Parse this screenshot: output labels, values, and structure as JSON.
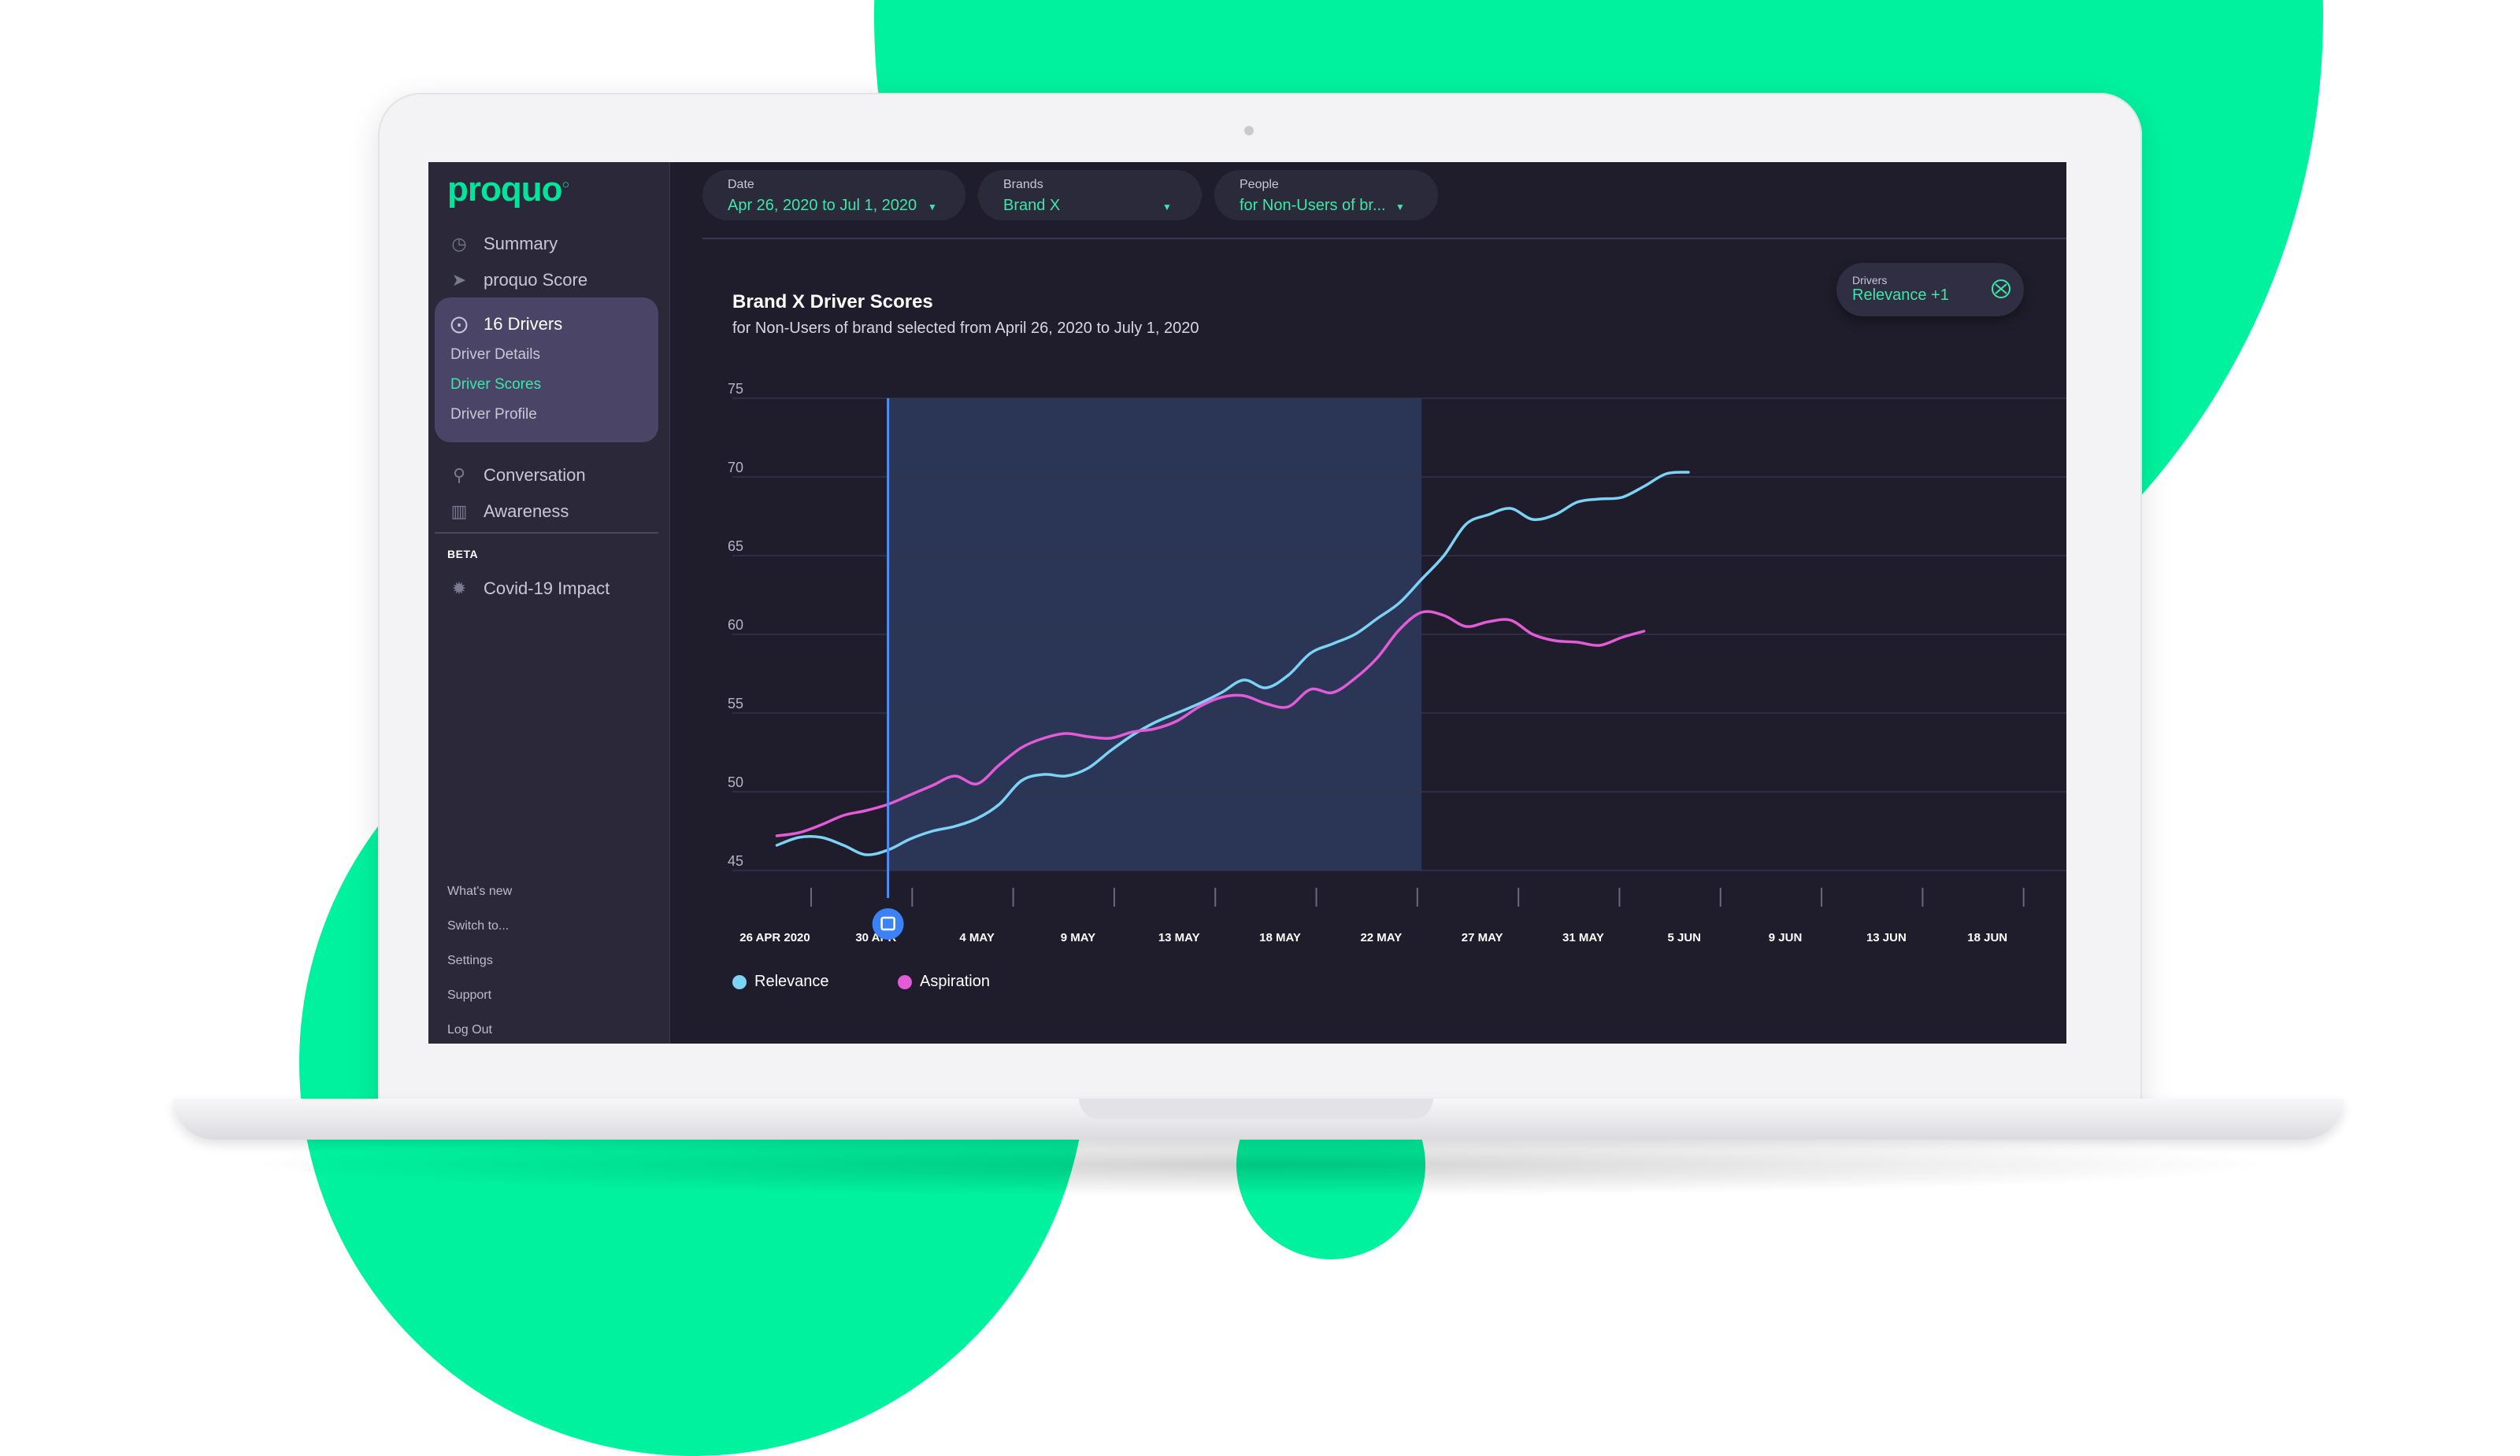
{
  "app": {
    "logo": "proquo"
  },
  "sidebar": {
    "items": [
      {
        "label": "Summary",
        "icon": "clock-icon"
      },
      {
        "label": "proquo Score",
        "icon": "send-icon"
      },
      {
        "label": "16 Drivers",
        "icon": "compass-icon"
      },
      {
        "label": "Conversation",
        "icon": "trophy-icon"
      },
      {
        "label": "Awareness",
        "icon": "steps-icon"
      }
    ],
    "sub_items": [
      {
        "label": "Driver Details",
        "active": false
      },
      {
        "label": "Driver Scores",
        "active": true
      },
      {
        "label": "Driver Profile",
        "active": false
      }
    ],
    "beta_label": "BETA",
    "beta_item": {
      "label": "Covid-19 Impact",
      "icon": "virus-icon"
    },
    "footer": [
      "What's new",
      "Switch to...",
      "Settings",
      "Support",
      "Log Out"
    ]
  },
  "filters": {
    "date": {
      "label": "Date",
      "value": "Apr 26, 2020 to Jul 1, 2020"
    },
    "brands": {
      "label": "Brands",
      "value": "Brand X"
    },
    "people": {
      "label": "People",
      "value": "for Non-Users of br..."
    }
  },
  "drivers_selector": {
    "label": "Drivers",
    "value": "Relevance +1"
  },
  "chart_data": {
    "type": "line",
    "title": "Brand X Driver Scores",
    "subtitle": "for Non-Users of brand selected from April 26, 2020 to July 1, 2020",
    "y_ticks": [
      75,
      70,
      65,
      60,
      55,
      50,
      45
    ],
    "ylim": [
      45,
      75
    ],
    "x_tick_labels": [
      "26 APR 2020",
      "30 APR",
      "4 MAY",
      "9 MAY",
      "13 MAY",
      "18 MAY",
      "22 MAY",
      "27 MAY",
      "31 MAY",
      "5 JUN",
      "9 JUN",
      "13 JUN",
      "18 JUN"
    ],
    "highlight_range": [
      "2020-05-01",
      "2020-05-25"
    ],
    "cursor_date": "2020-05-01",
    "grid": true,
    "legend_position": "bottom-left",
    "series": [
      {
        "name": "Relevance",
        "color": "#7dd3f5",
        "points": [
          [
            "2020-04-26",
            46.6
          ],
          [
            "2020-04-27",
            47.1
          ],
          [
            "2020-04-28",
            47.1
          ],
          [
            "2020-04-29",
            46.6
          ],
          [
            "2020-04-30",
            46.0
          ],
          [
            "2020-05-01",
            46.3
          ],
          [
            "2020-05-02",
            47.0
          ],
          [
            "2020-05-03",
            47.5
          ],
          [
            "2020-05-04",
            47.8
          ],
          [
            "2020-05-05",
            48.3
          ],
          [
            "2020-05-06",
            49.2
          ],
          [
            "2020-05-07",
            50.7
          ],
          [
            "2020-05-08",
            51.1
          ],
          [
            "2020-05-09",
            51.0
          ],
          [
            "2020-05-10",
            51.5
          ],
          [
            "2020-05-11",
            52.6
          ],
          [
            "2020-05-12",
            53.6
          ],
          [
            "2020-05-13",
            54.4
          ],
          [
            "2020-05-14",
            55.0
          ],
          [
            "2020-05-15",
            55.6
          ],
          [
            "2020-05-16",
            56.3
          ],
          [
            "2020-05-17",
            57.1
          ],
          [
            "2020-05-18",
            56.6
          ],
          [
            "2020-05-19",
            57.4
          ],
          [
            "2020-05-20",
            58.8
          ],
          [
            "2020-05-21",
            59.4
          ],
          [
            "2020-05-22",
            60.0
          ],
          [
            "2020-05-23",
            61.0
          ],
          [
            "2020-05-24",
            62.0
          ],
          [
            "2020-05-25",
            63.5
          ],
          [
            "2020-05-26",
            65.0
          ],
          [
            "2020-05-27",
            67.0
          ],
          [
            "2020-05-28",
            67.6
          ],
          [
            "2020-05-29",
            68.0
          ],
          [
            "2020-05-30",
            67.3
          ],
          [
            "2020-05-31",
            67.6
          ],
          [
            "2020-06-01",
            68.4
          ],
          [
            "2020-06-02",
            68.6
          ],
          [
            "2020-06-03",
            68.7
          ],
          [
            "2020-06-04",
            69.4
          ],
          [
            "2020-06-05",
            70.2
          ],
          [
            "2020-06-06",
            70.3
          ]
        ]
      },
      {
        "name": "Aspiration",
        "color": "#e45bd8",
        "points": [
          [
            "2020-04-26",
            47.2
          ],
          [
            "2020-04-27",
            47.4
          ],
          [
            "2020-04-28",
            47.9
          ],
          [
            "2020-04-29",
            48.5
          ],
          [
            "2020-04-30",
            48.8
          ],
          [
            "2020-05-01",
            49.2
          ],
          [
            "2020-05-02",
            49.8
          ],
          [
            "2020-05-03",
            50.4
          ],
          [
            "2020-05-04",
            51.0
          ],
          [
            "2020-05-05",
            50.5
          ],
          [
            "2020-05-06",
            51.7
          ],
          [
            "2020-05-07",
            52.8
          ],
          [
            "2020-05-08",
            53.4
          ],
          [
            "2020-05-09",
            53.7
          ],
          [
            "2020-05-10",
            53.5
          ],
          [
            "2020-05-11",
            53.4
          ],
          [
            "2020-05-12",
            53.8
          ],
          [
            "2020-05-13",
            54.0
          ],
          [
            "2020-05-14",
            54.5
          ],
          [
            "2020-05-15",
            55.4
          ],
          [
            "2020-05-16",
            56.0
          ],
          [
            "2020-05-17",
            56.1
          ],
          [
            "2020-05-18",
            55.6
          ],
          [
            "2020-05-19",
            55.4
          ],
          [
            "2020-05-20",
            56.5
          ],
          [
            "2020-05-21",
            56.3
          ],
          [
            "2020-05-22",
            57.2
          ],
          [
            "2020-05-23",
            58.5
          ],
          [
            "2020-05-24",
            60.3
          ],
          [
            "2020-05-25",
            61.4
          ],
          [
            "2020-05-26",
            61.2
          ],
          [
            "2020-05-27",
            60.5
          ],
          [
            "2020-05-28",
            60.8
          ],
          [
            "2020-05-29",
            60.9
          ],
          [
            "2020-05-30",
            60.0
          ],
          [
            "2020-05-31",
            59.6
          ],
          [
            "2020-06-01",
            59.5
          ],
          [
            "2020-06-02",
            59.3
          ],
          [
            "2020-06-03",
            59.8
          ],
          [
            "2020-06-04",
            60.2
          ]
        ]
      }
    ]
  }
}
